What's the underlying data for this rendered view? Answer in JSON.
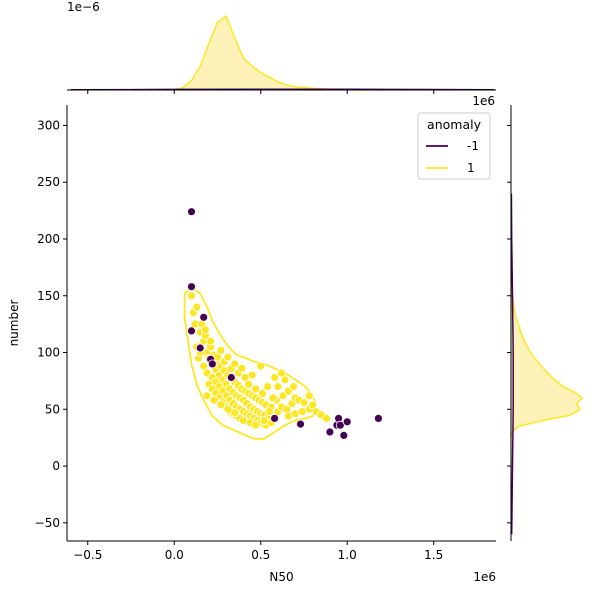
{
  "chart_data": {
    "type": "scatter",
    "variant": "jointplot",
    "xlabel": "N50",
    "ylabel": "number",
    "x_offset_text": "1e6",
    "y_offset_text": "1e6",
    "top_marginal_offset_text": "1e−6",
    "xlim": [
      -0.62,
      1.86
    ],
    "ylim": [
      -66,
      318
    ],
    "x_unit_scale": 1000000,
    "xticks": [
      -0.5,
      0.0,
      0.5,
      1.0,
      1.5
    ],
    "xtick_labels": [
      "−0.5",
      "0.0",
      "0.5",
      "1.0",
      "1.5"
    ],
    "yticks": [
      -50,
      0,
      50,
      100,
      150,
      200,
      250,
      300
    ],
    "ytick_labels": [
      "−50",
      "0",
      "50",
      "100",
      "150",
      "200",
      "250",
      "300"
    ],
    "grid": false,
    "legend": {
      "title": "anomaly",
      "placement": "top-right",
      "entries": [
        {
          "label": "-1",
          "color": "#440154"
        },
        {
          "label": "1",
          "color": "#fde725"
        }
      ]
    },
    "colors": {
      "anomaly_neg1": "#440154",
      "anomaly_pos1": "#fde725",
      "kde_fill": "#fdf3b8"
    },
    "series": [
      {
        "name": "1",
        "color": "#fde725",
        "points": [
          [
            0.1,
            150
          ],
          [
            0.11,
            135
          ],
          [
            0.12,
            125
          ],
          [
            0.13,
            140
          ],
          [
            0.15,
            118
          ],
          [
            0.17,
            110
          ],
          [
            0.19,
            100
          ],
          [
            0.2,
            95
          ],
          [
            0.22,
            90
          ],
          [
            0.24,
            85
          ],
          [
            0.26,
            80
          ],
          [
            0.28,
            76
          ],
          [
            0.3,
            72
          ],
          [
            0.32,
            68
          ],
          [
            0.34,
            65
          ],
          [
            0.36,
            62
          ],
          [
            0.38,
            60
          ],
          [
            0.4,
            58
          ],
          [
            0.42,
            55
          ],
          [
            0.44,
            52
          ],
          [
            0.46,
            50
          ],
          [
            0.48,
            48
          ],
          [
            0.5,
            46
          ],
          [
            0.52,
            45
          ],
          [
            0.55,
            44
          ],
          [
            0.58,
            42
          ],
          [
            0.6,
            48
          ],
          [
            0.62,
            52
          ],
          [
            0.65,
            50
          ],
          [
            0.68,
            55
          ],
          [
            0.7,
            60
          ],
          [
            0.72,
            58
          ],
          [
            0.75,
            56
          ],
          [
            0.78,
            62
          ],
          [
            0.82,
            48
          ],
          [
            0.85,
            45
          ],
          [
            0.88,
            42
          ],
          [
            0.16,
            125
          ],
          [
            0.18,
            115
          ],
          [
            0.21,
            105
          ],
          [
            0.23,
            98
          ],
          [
            0.25,
            92
          ],
          [
            0.27,
            88
          ],
          [
            0.29,
            84
          ],
          [
            0.31,
            80
          ],
          [
            0.33,
            77
          ],
          [
            0.35,
            74
          ],
          [
            0.37,
            71
          ],
          [
            0.39,
            68
          ],
          [
            0.41,
            66
          ],
          [
            0.43,
            64
          ],
          [
            0.45,
            62
          ],
          [
            0.47,
            60
          ],
          [
            0.49,
            58
          ],
          [
            0.51,
            56
          ],
          [
            0.53,
            54
          ],
          [
            0.56,
            52
          ],
          [
            0.59,
            58
          ],
          [
            0.63,
            62
          ],
          [
            0.66,
            66
          ],
          [
            0.69,
            70
          ],
          [
            0.14,
            95
          ],
          [
            0.17,
            88
          ],
          [
            0.19,
            82
          ],
          [
            0.22,
            78
          ],
          [
            0.24,
            74
          ],
          [
            0.26,
            70
          ],
          [
            0.28,
            66
          ],
          [
            0.3,
            62
          ],
          [
            0.32,
            58
          ],
          [
            0.34,
            55
          ],
          [
            0.36,
            52
          ],
          [
            0.38,
            50
          ],
          [
            0.4,
            48
          ],
          [
            0.42,
            46
          ],
          [
            0.44,
            44
          ],
          [
            0.46,
            42
          ],
          [
            0.48,
            40
          ],
          [
            0.5,
            38
          ],
          [
            0.53,
            36
          ],
          [
            0.56,
            38
          ],
          [
            0.2,
            72
          ],
          [
            0.22,
            68
          ],
          [
            0.24,
            64
          ],
          [
            0.26,
            60
          ],
          [
            0.28,
            56
          ],
          [
            0.3,
            52
          ],
          [
            0.32,
            48
          ],
          [
            0.34,
            46
          ],
          [
            0.36,
            44
          ],
          [
            0.38,
            42
          ],
          [
            0.4,
            40
          ],
          [
            0.44,
            38
          ],
          [
            0.47,
            36
          ],
          [
            0.52,
            40
          ],
          [
            0.55,
            48
          ],
          [
            0.57,
            60
          ],
          [
            0.6,
            70
          ],
          [
            0.64,
            76
          ],
          [
            0.5,
            88
          ],
          [
            0.45,
            80
          ],
          [
            0.41,
            78
          ],
          [
            0.37,
            82
          ],
          [
            0.33,
            86
          ],
          [
            0.29,
            92
          ],
          [
            0.25,
            96
          ],
          [
            0.21,
            110
          ],
          [
            0.18,
            120
          ],
          [
            0.15,
            100
          ],
          [
            0.13,
            105
          ],
          [
            0.27,
            102
          ],
          [
            0.31,
            96
          ],
          [
            0.35,
            90
          ],
          [
            0.39,
            86
          ],
          [
            0.43,
            72
          ],
          [
            0.47,
            68
          ],
          [
            0.51,
            64
          ],
          [
            0.54,
            70
          ],
          [
            0.58,
            78
          ],
          [
            0.62,
            82
          ],
          [
            0.66,
            44
          ],
          [
            0.7,
            46
          ],
          [
            0.74,
            48
          ],
          [
            0.78,
            50
          ],
          [
            0.8,
            54
          ],
          [
            0.19,
            62
          ],
          [
            0.23,
            58
          ],
          [
            0.27,
            54
          ],
          [
            0.31,
            50
          ],
          [
            0.35,
            47
          ]
        ]
      },
      {
        "name": "-1",
        "color": "#440154",
        "points": [
          [
            0.1,
            224
          ],
          [
            0.1,
            158
          ],
          [
            0.1,
            119
          ],
          [
            0.17,
            131
          ],
          [
            0.15,
            104
          ],
          [
            0.21,
            94
          ],
          [
            0.22,
            90
          ],
          [
            0.33,
            78
          ],
          [
            0.58,
            42
          ],
          [
            0.73,
            37
          ],
          [
            0.9,
            30
          ],
          [
            0.94,
            36
          ],
          [
            0.95,
            42
          ],
          [
            0.96,
            36
          ],
          [
            0.98,
            27
          ],
          [
            1.0,
            39
          ],
          [
            1.18,
            42
          ]
        ]
      }
    ],
    "top_marginal": {
      "type": "kde",
      "series": [
        {
          "name": "1",
          "x": [
            0.0,
            0.05,
            0.1,
            0.15,
            0.2,
            0.25,
            0.3,
            0.35,
            0.4,
            0.45,
            0.5,
            0.55,
            0.6,
            0.65,
            0.7,
            0.8,
            0.9,
            1.0,
            1.1
          ],
          "density": [
            0.0,
            0.03,
            0.12,
            0.3,
            0.58,
            0.85,
            0.93,
            0.65,
            0.4,
            0.3,
            0.22,
            0.16,
            0.1,
            0.06,
            0.04,
            0.02,
            0.01,
            0.005,
            0.0
          ]
        },
        {
          "name": "-1",
          "x": [
            -0.6,
            0.0,
            0.5,
            1.0,
            1.5,
            1.85
          ],
          "density": [
            0.003,
            0.008,
            0.01,
            0.01,
            0.006,
            0.003
          ]
        }
      ]
    },
    "right_marginal": {
      "type": "kde",
      "series": [
        {
          "name": "1",
          "y": [
            25,
            30,
            35,
            40,
            45,
            50,
            55,
            60,
            65,
            70,
            75,
            80,
            85,
            90,
            95,
            100,
            110,
            120,
            130,
            140,
            150,
            160
          ],
          "density": [
            0.0,
            0.02,
            0.1,
            0.42,
            0.8,
            0.92,
            0.88,
            0.95,
            0.85,
            0.7,
            0.6,
            0.52,
            0.45,
            0.38,
            0.32,
            0.26,
            0.18,
            0.12,
            0.07,
            0.04,
            0.02,
            0.0
          ]
        },
        {
          "name": "-1",
          "y": [
            -60,
            0,
            50,
            100,
            150,
            200,
            240
          ],
          "density": [
            0.01,
            0.02,
            0.03,
            0.03,
            0.02,
            0.01,
            0.005
          ]
        }
      ]
    },
    "contours": [
      {
        "name": "1",
        "color": "#fde725",
        "path": [
          [
            0.06,
            152
          ],
          [
            0.1,
            157
          ],
          [
            0.15,
            152
          ],
          [
            0.19,
            140
          ],
          [
            0.22,
            128
          ],
          [
            0.25,
            120
          ],
          [
            0.28,
            112
          ],
          [
            0.32,
            104
          ],
          [
            0.36,
            98
          ],
          [
            0.4,
            96
          ],
          [
            0.46,
            92
          ],
          [
            0.52,
            90
          ],
          [
            0.58,
            86
          ],
          [
            0.64,
            82
          ],
          [
            0.7,
            76
          ],
          [
            0.76,
            70
          ],
          [
            0.81,
            58
          ],
          [
            0.82,
            50
          ],
          [
            0.8,
            44
          ],
          [
            0.76,
            42
          ],
          [
            0.7,
            40
          ],
          [
            0.64,
            36
          ],
          [
            0.58,
            30
          ],
          [
            0.52,
            24
          ],
          [
            0.46,
            24
          ],
          [
            0.4,
            28
          ],
          [
            0.34,
            32
          ],
          [
            0.28,
            36
          ],
          [
            0.22,
            44
          ],
          [
            0.17,
            58
          ],
          [
            0.13,
            72
          ],
          [
            0.1,
            90
          ],
          [
            0.08,
            110
          ],
          [
            0.06,
            130
          ],
          [
            0.06,
            152
          ]
        ]
      }
    ]
  }
}
